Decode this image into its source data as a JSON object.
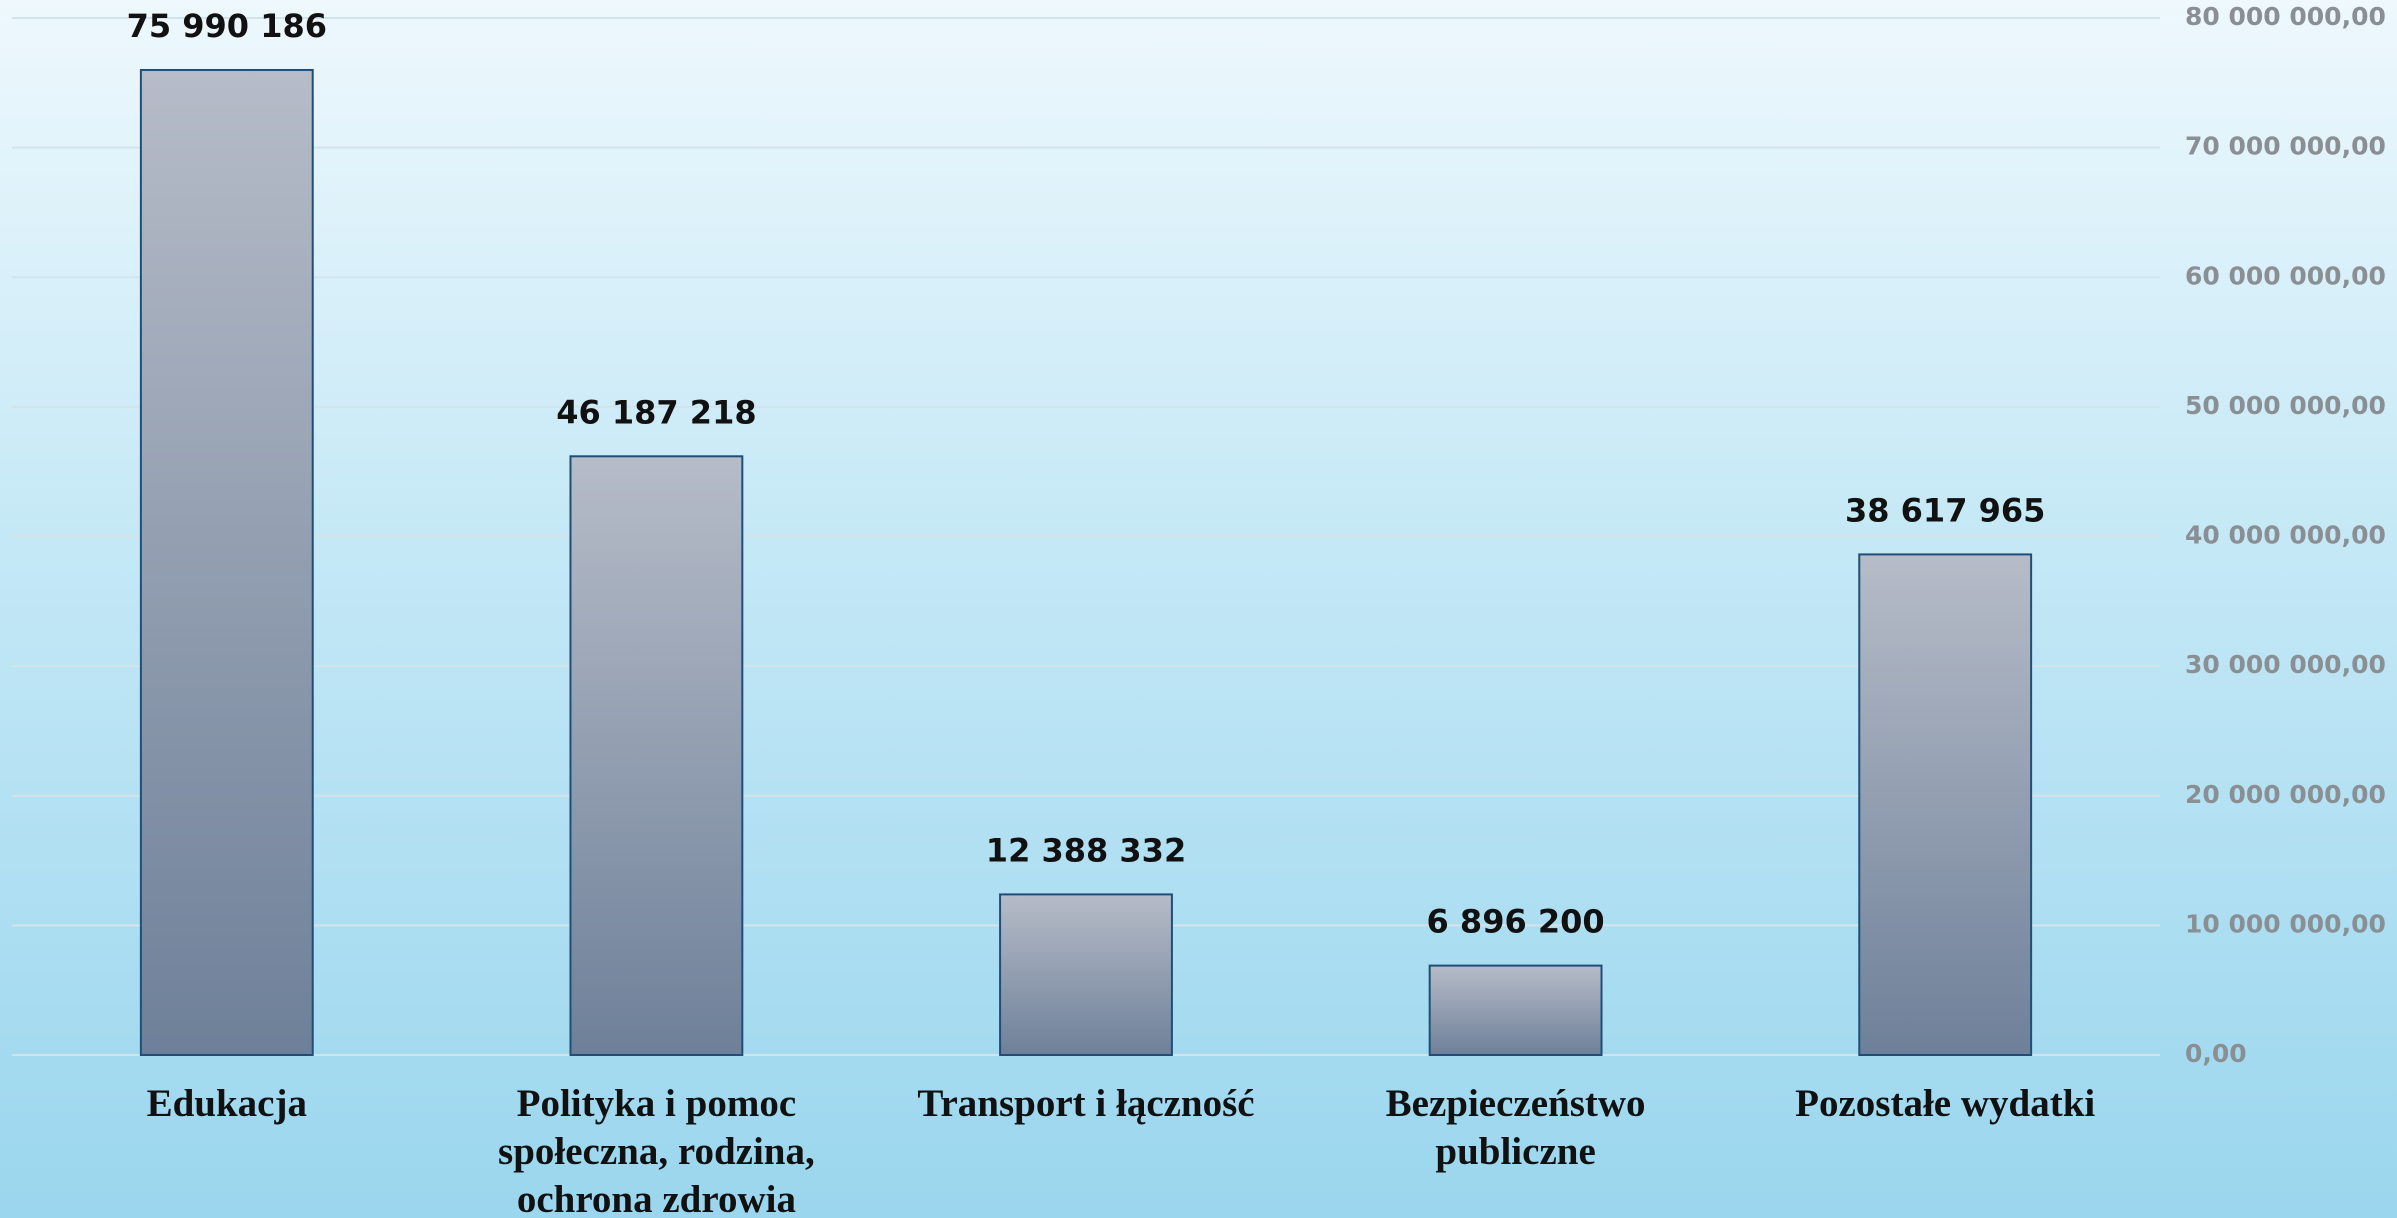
{
  "chart_data": {
    "type": "bar",
    "categories": [
      "Edukacja",
      "Polityka i pomoc społeczna, rodzina, ochrona zdrowia",
      "Transport i łączność",
      "Bezpieczeństwo publiczne",
      "Pozostałe wydatki"
    ],
    "values": [
      75990186,
      46187218,
      12388332,
      6896200,
      38617965
    ],
    "value_labels": [
      "75 990 186",
      "46 187 218",
      "12 388 332",
      "6 896 200",
      "38 617 965"
    ],
    "color": "#8a96aa",
    "ylim": [
      0,
      80000000
    ],
    "yticks": [
      {
        "value": 0,
        "label": "0,00"
      },
      {
        "value": 10000000,
        "label": "10 000 000,00"
      },
      {
        "value": 20000000,
        "label": "20 000 000,00"
      },
      {
        "value": 30000000,
        "label": "30 000 000,00"
      },
      {
        "value": 40000000,
        "label": "40 000 000,00"
      },
      {
        "value": 50000000,
        "label": "50 000 000,00"
      },
      {
        "value": 60000000,
        "label": "60 000 000,00"
      },
      {
        "value": 70000000,
        "label": "70 000 000,00"
      },
      {
        "value": 80000000,
        "label": "80 000 000,00"
      }
    ],
    "grid": true,
    "y_axis_side": "right"
  }
}
